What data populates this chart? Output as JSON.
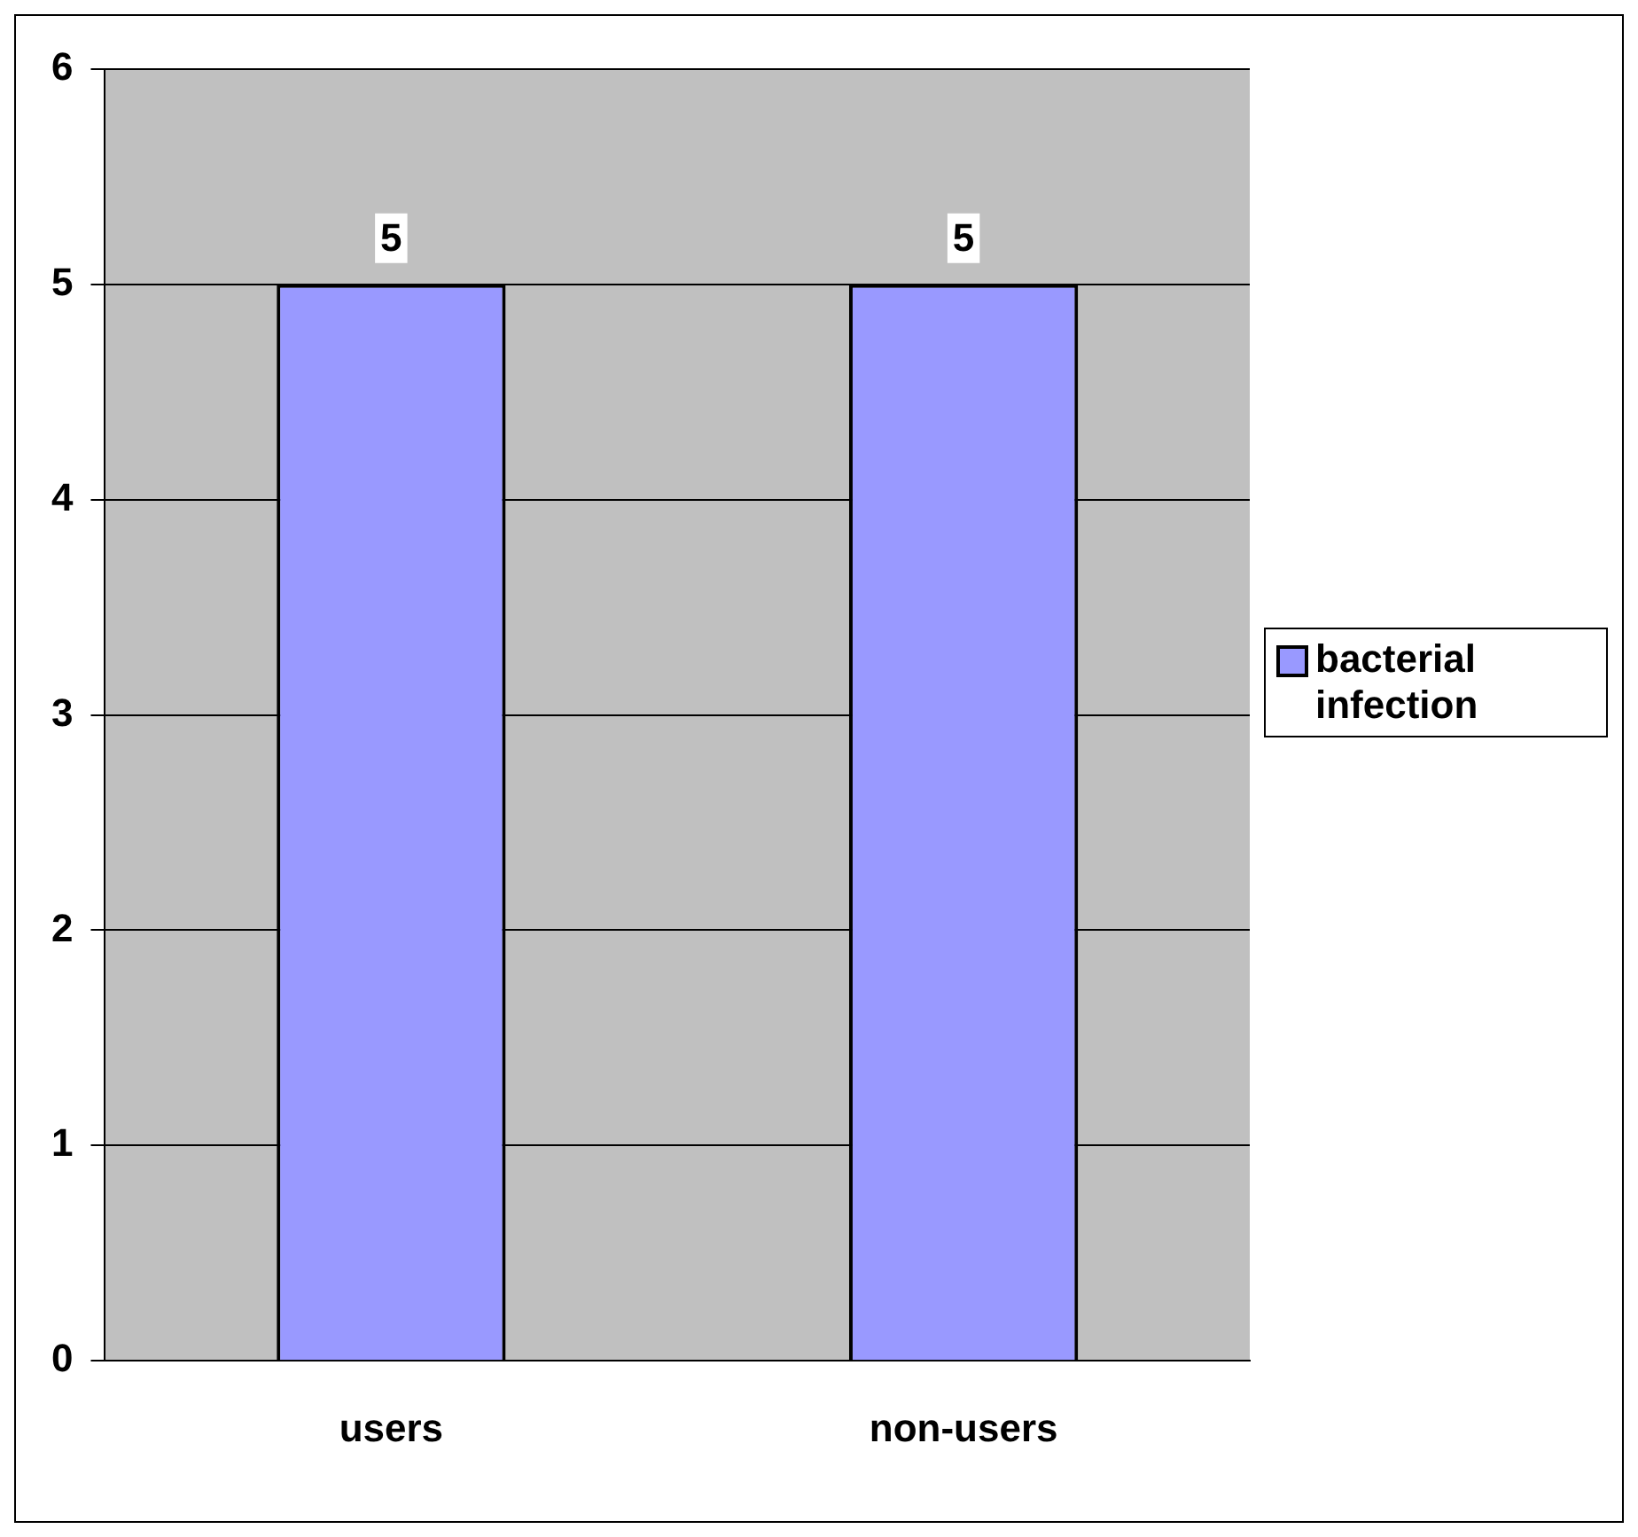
{
  "chart_data": {
    "type": "bar",
    "categories": [
      "users",
      "non-users"
    ],
    "series": [
      {
        "name": "bacterial infection",
        "color": "#9999ff",
        "values": [
          5,
          5
        ]
      }
    ],
    "ylim": [
      0,
      6
    ],
    "yticks": [
      0,
      1,
      2,
      3,
      4,
      5,
      6
    ],
    "grid": "y",
    "legend": "right",
    "data_labels": true
  }
}
